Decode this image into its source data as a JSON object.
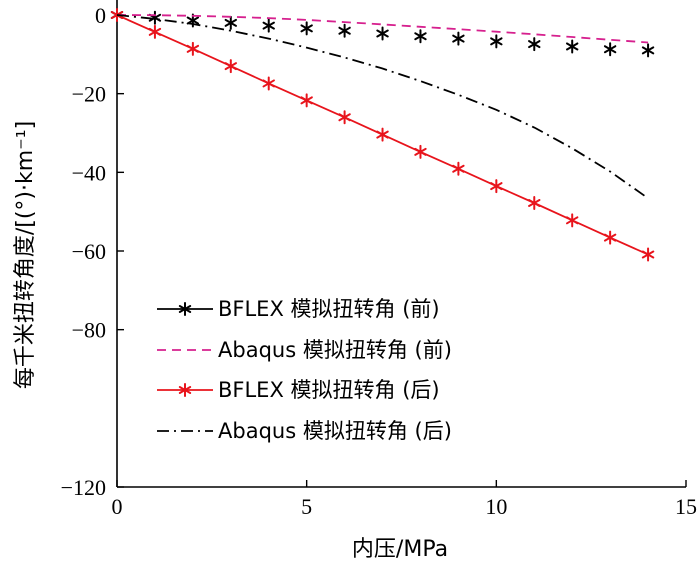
{
  "chart_data": {
    "type": "line",
    "xlabel": "内压/MPa",
    "ylabel": "每千米扭转角度/[(°)·km⁻¹]",
    "xlim": [
      0,
      15
    ],
    "ylim": [
      -120,
      0
    ],
    "xticks": [
      "0",
      "5",
      "10",
      "15"
    ],
    "yticks": [
      "0",
      "−20",
      "−40",
      "−60",
      "−80",
      "−120"
    ],
    "ytick_values": [
      0,
      -20,
      -40,
      -60,
      -80,
      -120
    ],
    "grid": false,
    "legend_position": "lower-left",
    "series": [
      {
        "name": "BFLEX 模拟扭转角 (前)",
        "style": "star-markers",
        "color": "#000000",
        "x": [
          0,
          1,
          2,
          3,
          4,
          5,
          6,
          7,
          8,
          9,
          10,
          11,
          12,
          13,
          14
        ],
        "y": [
          0,
          -0.7,
          -1.4,
          -2.0,
          -2.7,
          -3.4,
          -4.0,
          -4.7,
          -5.4,
          -6.0,
          -6.7,
          -7.4,
          -8.0,
          -8.7,
          -9.0
        ]
      },
      {
        "name": "Abaqus 模拟扭转角 (前)",
        "style": "dashed",
        "color": "#d6208e",
        "x": [
          0,
          1,
          2,
          3,
          4,
          5,
          6,
          7,
          8,
          9,
          10,
          11,
          12,
          13,
          14
        ],
        "y": [
          0,
          -0.05,
          -0.2,
          -0.45,
          -0.8,
          -1.25,
          -1.8,
          -2.4,
          -3.0,
          -3.6,
          -4.25,
          -4.9,
          -5.6,
          -6.3,
          -7.0
        ]
      },
      {
        "name": "BFLEX 模拟扭转角 (后)",
        "style": "solid-star",
        "color": "#e8141c",
        "x": [
          0,
          1,
          2,
          3,
          4,
          5,
          6,
          7,
          8,
          9,
          10,
          11,
          12,
          13,
          14
        ],
        "y": [
          0,
          -4.3,
          -8.6,
          -13.0,
          -17.4,
          -21.7,
          -26.0,
          -30.4,
          -34.8,
          -39.1,
          -43.5,
          -47.8,
          -52.2,
          -56.6,
          -60.9
        ]
      },
      {
        "name": "Abaqus 模拟扭转角 (后)",
        "style": "dash-dot",
        "color": "#000000",
        "x": [
          0,
          1,
          2,
          3,
          4,
          5,
          6,
          7,
          8,
          9,
          10,
          11,
          12,
          13,
          14
        ],
        "y": [
          0,
          -1.0,
          -2.3,
          -4.0,
          -6.0,
          -8.3,
          -10.8,
          -13.6,
          -16.8,
          -20.3,
          -24.1,
          -28.6,
          -33.9,
          -39.8,
          -46.6
        ]
      }
    ]
  }
}
